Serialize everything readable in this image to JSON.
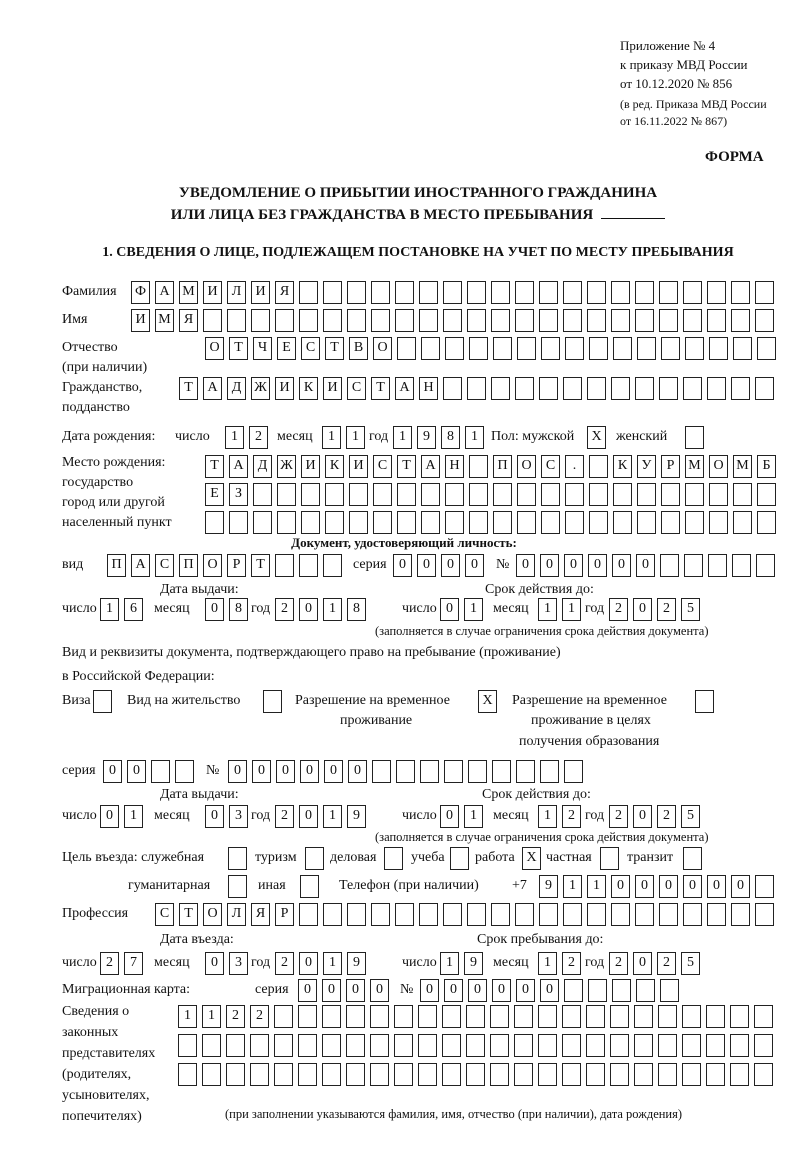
{
  "header": {
    "appendix_line1": "Приложение № 4",
    "appendix_line2": "к приказу МВД России",
    "appendix_line3": "от 10.12.2020 № 856",
    "edition_line1": "(в ред. Приказа МВД России",
    "edition_line2": "от 16.11.2022 № 867)",
    "form_label": "ФОРМА",
    "title_line1": "УВЕДОМЛЕНИЕ О ПРИБЫТИИ ИНОСТРАННОГО ГРАЖДАНИНА",
    "title_line2": "ИЛИ ЛИЦА БЕЗ ГРАЖДАНСТВА В МЕСТО ПРЕБЫВАНИЯ",
    "section_title": "1. СВЕДЕНИЯ О ЛИЦЕ, ПОДЛЕЖАЩЕМ ПОСТАНОВКЕ НА УЧЕТ ПО МЕСТУ ПРЕБЫВАНИЯ"
  },
  "labels": {
    "surname": "Фамилия",
    "name": "Имя",
    "patronymic_1": "Отчество",
    "patronymic_2": "(при наличии)",
    "citizenship_1": "Гражданство,",
    "citizenship_2": "подданство",
    "birth_date": "Дата рождения:",
    "day": "число",
    "month": "месяц",
    "year": "год",
    "sex": "Пол: мужской",
    "female": "женский",
    "birthplace_1": "Место рождения:",
    "birthplace_2": "государство",
    "birthplace_3": "город или другой",
    "birthplace_4": "населенный пункт",
    "id_doc_heading": "Документ, удостоверяющий личность:",
    "doc_type": "вид",
    "series": "серия",
    "number": "№",
    "issue_date": "Дата выдачи:",
    "valid_until": "Срок действия до:",
    "validity_note": "(заполняется в случае ограничения срока действия документа)",
    "right_doc_1": "Вид и реквизиты документа, подтверждающего право на пребывание (проживание)",
    "right_doc_2": "в Российской Федерации:",
    "visa": "Виза",
    "residence_permit": "Вид на жительство",
    "temp_residence_1": "Разрешение на временное",
    "temp_residence_2": "проживание",
    "temp_edu_1": "Разрешение на временное",
    "temp_edu_2": "проживание в целях",
    "temp_edu_3": "получения образования",
    "purpose": "Цель въезда: служебная",
    "tourism": "туризм",
    "business": "деловая",
    "study": "учеба",
    "work": "работа",
    "private": "частная",
    "transit": "транзит",
    "humanitarian": "гуманитарная",
    "other": "иная",
    "phone": "Телефон (при наличии)",
    "phone_prefix": "+7",
    "profession": "Профессия",
    "entry_date": "Дата въезда:",
    "stay_until": "Срок пребывания до:",
    "migration_card": "Миграционная карта:",
    "reps_1": "Сведения о",
    "reps_2": "законных",
    "reps_3": "представителях",
    "reps_4": "(родителях,",
    "reps_5": "усыновителях,",
    "reps_6": "попечителях)",
    "reps_note": "(при заполнении указываются фамилия, имя, отчество (при наличии), дата рождения)"
  },
  "values": {
    "surname": "ФАМИЛИЯ",
    "name": "ИМЯ",
    "patronymic": "ОТЧЕСТВО",
    "citizenship": "ТАДЖИКИСТАН",
    "birth_day": "12",
    "birth_month": "11",
    "birth_year": "1981",
    "male": "X",
    "female": "",
    "birthplace_row1": "ТАДЖИКИСТАН ПОС. КУРМОМБ",
    "birthplace_row2": "ЕЗ",
    "birthplace_row3": "",
    "id_doc_type": "ПАСПОРТ",
    "id_doc_series": "0000",
    "id_doc_number": "000000",
    "id_issue_day": "16",
    "id_issue_month": "08",
    "id_issue_year": "2018",
    "id_valid_day": "01",
    "id_valid_month": "11",
    "id_valid_year": "2025",
    "visa": "",
    "residence_permit": "",
    "temp_residence": "X",
    "temp_edu": "",
    "right_doc_series": "00",
    "right_doc_number": "000000",
    "right_issue_day": "01",
    "right_issue_month": "03",
    "right_issue_year": "2019",
    "right_valid_day": "01",
    "right_valid_month": "12",
    "right_valid_year": "2025",
    "purpose_official": "",
    "purpose_tourism": "",
    "purpose_business": "",
    "purpose_study": "",
    "purpose_work": "X",
    "purpose_private": "",
    "purpose_transit": "",
    "purpose_humanitarian": "",
    "purpose_other": "",
    "phone": "911000000",
    "profession": "СТОЛЯР",
    "entry_day": "27",
    "entry_month": "03",
    "entry_year": "2019",
    "stay_day": "19",
    "stay_month": "12",
    "stay_year": "2025",
    "mig_series": "0000",
    "mig_number": "000000",
    "reps_row1": "1122",
    "reps_row2": "",
    "reps_row3": ""
  }
}
